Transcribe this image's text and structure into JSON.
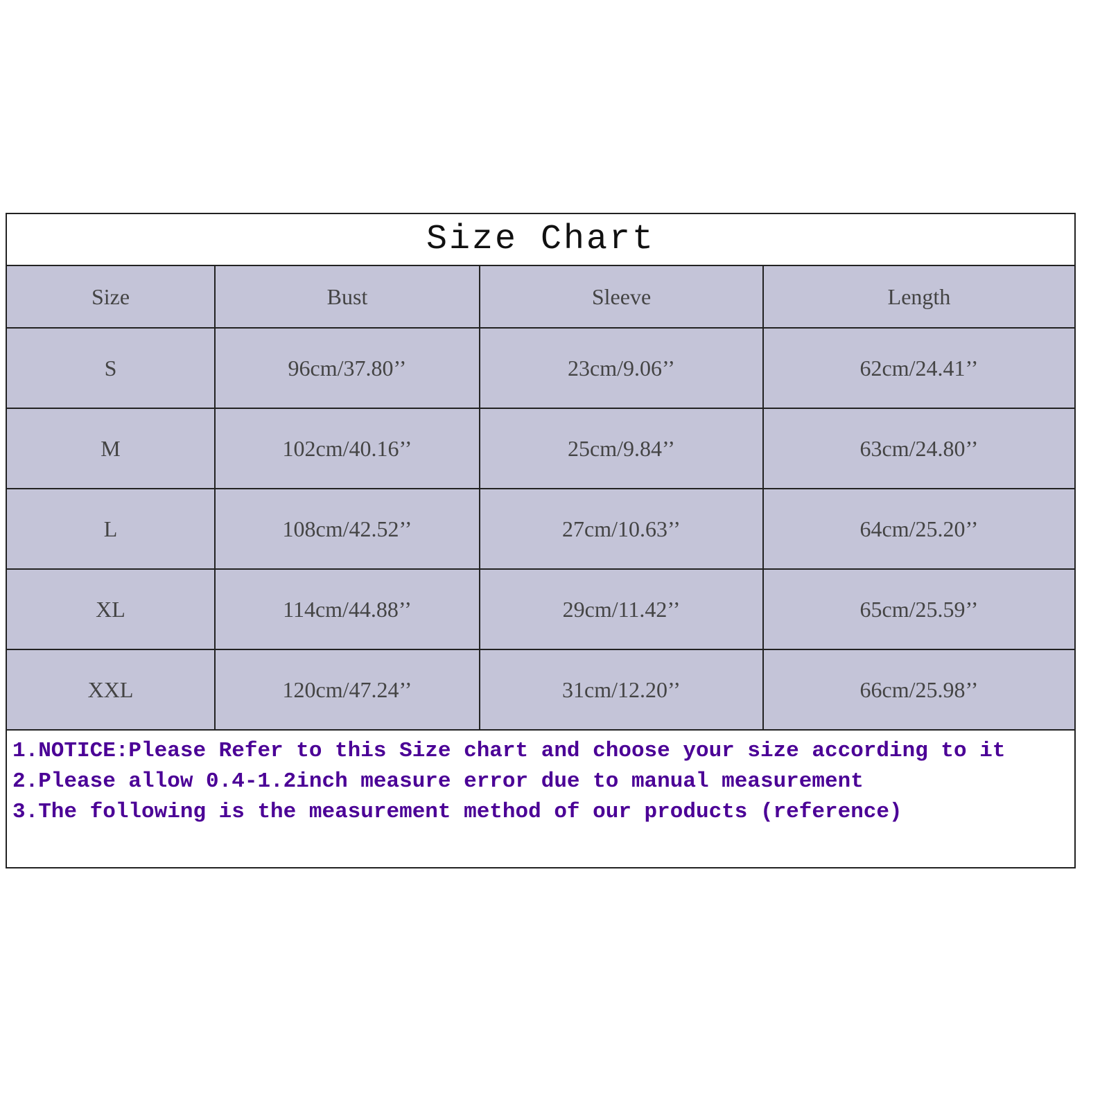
{
  "title": "Size Chart",
  "columns": [
    "Size",
    "Bust",
    "Sleeve",
    "Length"
  ],
  "rows": [
    [
      "S",
      "96cm/37.80’’",
      "23cm/9.06’’",
      "62cm/24.41’’"
    ],
    [
      "M",
      "102cm/40.16’’",
      "25cm/9.84’’",
      "63cm/24.80’’"
    ],
    [
      "L",
      "108cm/42.52’’",
      "27cm/10.63’’",
      "64cm/25.20’’"
    ],
    [
      "XL",
      "114cm/44.88’’",
      "29cm/11.42’’",
      "65cm/25.59’’"
    ],
    [
      "XXL",
      "120cm/47.24’’",
      "31cm/12.20’’",
      "66cm/25.98’’"
    ]
  ],
  "notes": [
    "1.NOTICE:Please Refer to this Size chart and choose your size according to it",
    "2.Please allow 0.4-1.2inch measure error due to manual measurement",
    "3.The following is the measurement method of our products (reference)"
  ],
  "colors": {
    "cell_background": "#c4c4d8",
    "notes_text": "#4b0096"
  }
}
